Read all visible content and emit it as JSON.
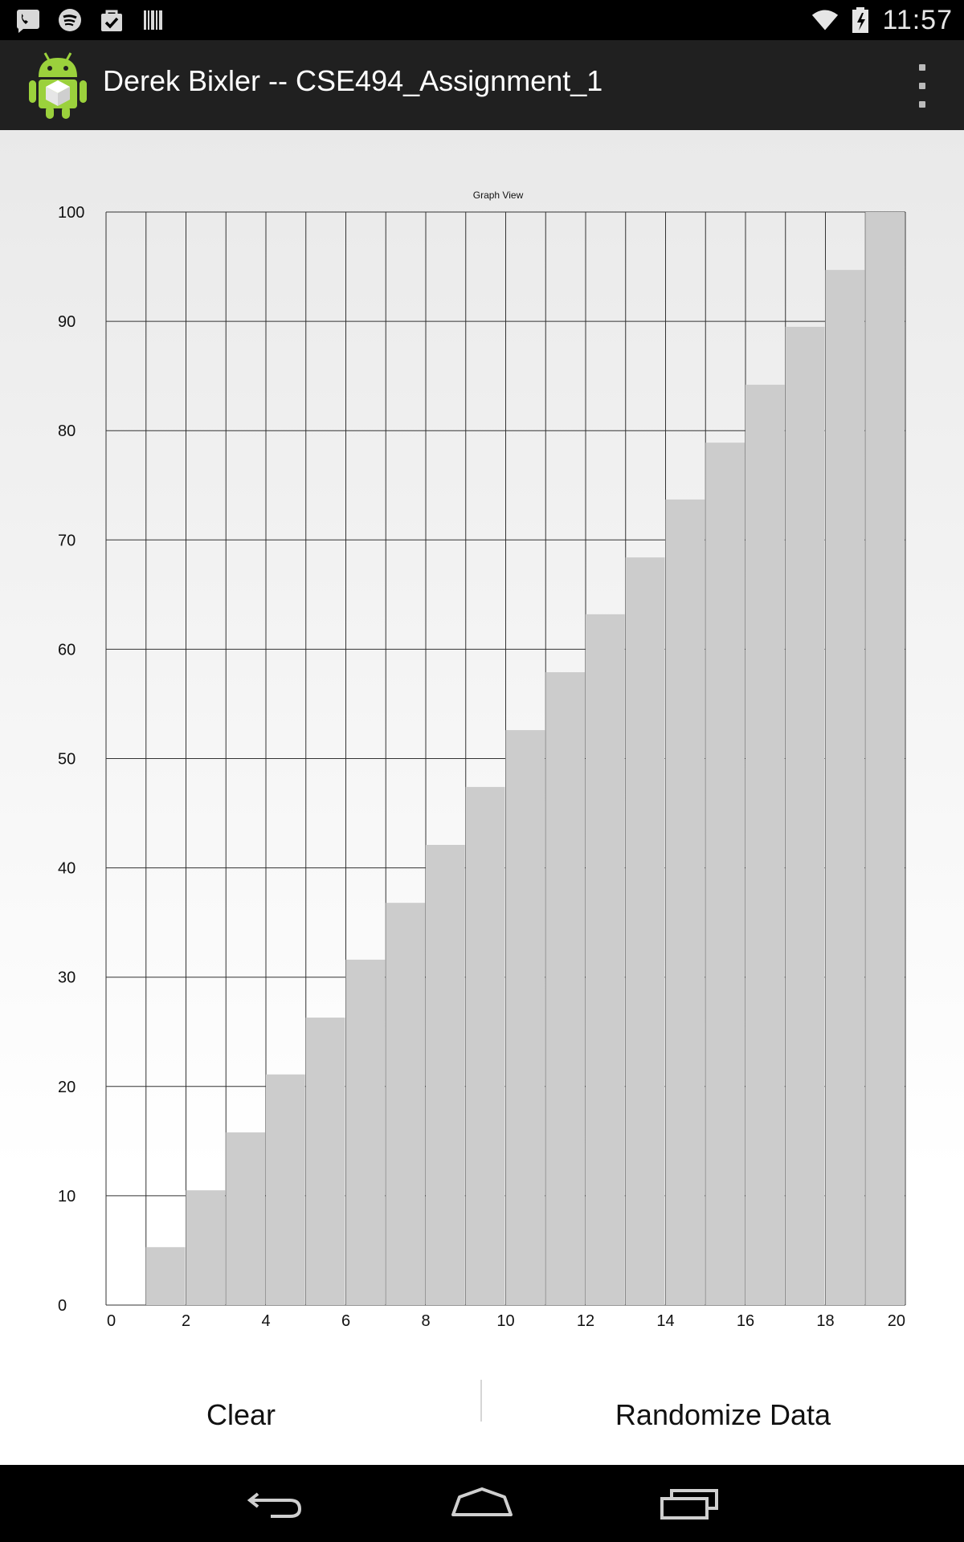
{
  "status_bar": {
    "time": "11:57",
    "left_icons": [
      "voicemail-icon",
      "spotify-icon",
      "task-bag-icon",
      "barcode-icon"
    ],
    "right_icons": [
      "wifi-icon",
      "battery-charging-icon"
    ]
  },
  "action_bar": {
    "title": "Derek Bixler -- CSE494_Assignment_1",
    "icons": [
      "android-app-icon",
      "overflow-menu-icon"
    ]
  },
  "buttons": {
    "clear_label": "Clear",
    "randomize_label": "Randomize Data"
  },
  "nav_bar": {
    "icons": [
      "back-icon",
      "home-icon",
      "recents-icon"
    ]
  },
  "colors": {
    "bar": "#cccccc",
    "grid": "#333333",
    "status_bar": "#000000",
    "action_bar": "#202020"
  },
  "chart_data": {
    "type": "bar",
    "title": "Graph View",
    "xlabel": "",
    "ylabel": "",
    "xlim": [
      0,
      20
    ],
    "ylim": [
      0,
      100
    ],
    "grid": true,
    "x_ticks": [
      "0",
      "2",
      "4",
      "6",
      "8",
      "10",
      "12",
      "14",
      "16",
      "18",
      "20"
    ],
    "y_ticks": [
      "0",
      "10",
      "20",
      "30",
      "40",
      "50",
      "60",
      "70",
      "80",
      "90",
      "100"
    ],
    "x": [
      0,
      1,
      2,
      3,
      4,
      5,
      6,
      7,
      8,
      9,
      10,
      11,
      12,
      13,
      14,
      15,
      16,
      17,
      18,
      19
    ],
    "values": [
      0,
      5.3,
      10.5,
      15.8,
      21.1,
      26.3,
      31.6,
      36.8,
      42.1,
      47.4,
      52.6,
      57.9,
      63.2,
      68.4,
      73.7,
      78.9,
      84.2,
      89.5,
      94.7,
      100
    ]
  }
}
